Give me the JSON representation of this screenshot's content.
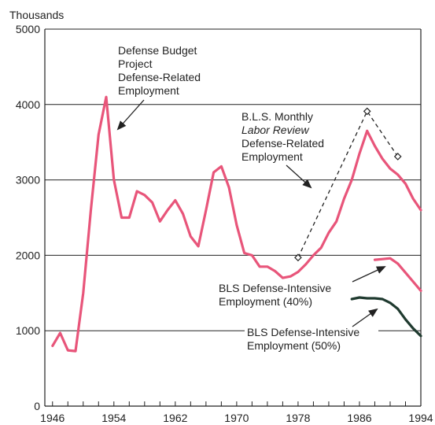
{
  "chart_data": {
    "type": "line",
    "title": "",
    "ylabel": "Thousands",
    "xlabel": "",
    "xlim": [
      1945,
      1994
    ],
    "ylim": [
      0,
      5000
    ],
    "x_ticks": [
      1946,
      1954,
      1962,
      1970,
      1978,
      1986,
      1994
    ],
    "y_ticks": [
      0,
      1000,
      2000,
      3000,
      4000,
      5000
    ],
    "grid": "horizontal",
    "colors": {
      "defense_budget": "#e8557a",
      "bls_mlr": "#222222",
      "bls_40": "#e8557a",
      "bls_50": "#1f3a2f",
      "axes": "#222222"
    },
    "series": [
      {
        "key": "defense_budget",
        "x": [
          1946,
          1947,
          1948,
          1949,
          1950,
          1951,
          1952,
          1953,
          1954,
          1955,
          1956,
          1957,
          1958,
          1959,
          1960,
          1961,
          1962,
          1963,
          1964,
          1965,
          1966,
          1967,
          1968,
          1969,
          1970,
          1971,
          1972,
          1973,
          1974,
          1975,
          1976,
          1977,
          1978,
          1979,
          1980,
          1981,
          1982,
          1983,
          1984,
          1985,
          1986,
          1987,
          1988,
          1989,
          1990,
          1991,
          1992,
          1993,
          1994
        ],
        "values": [
          800,
          970,
          740,
          730,
          1500,
          2600,
          3600,
          4100,
          3000,
          2500,
          2500,
          2850,
          2800,
          2700,
          2450,
          2600,
          2730,
          2550,
          2250,
          2120,
          2600,
          3100,
          3180,
          2900,
          2400,
          2030,
          2000,
          1850,
          1850,
          1790,
          1700,
          1720,
          1780,
          1880,
          2000,
          2100,
          2300,
          2450,
          2750,
          3000,
          3350,
          3650,
          3450,
          3280,
          3150,
          3070,
          2950,
          2750,
          2600
        ]
      },
      {
        "key": "bls_mlr",
        "x": [
          1978,
          1987,
          1991
        ],
        "values": [
          1970,
          3910,
          3310
        ]
      },
      {
        "key": "bls_40",
        "x": [
          1988,
          1989,
          1990,
          1991,
          1992,
          1993,
          1994
        ],
        "values": [
          1940,
          1950,
          1960,
          1890,
          1770,
          1650,
          1530
        ]
      },
      {
        "key": "bls_50",
        "x": [
          1985,
          1986,
          1987,
          1988,
          1989,
          1990,
          1991,
          1992,
          1993,
          1994
        ],
        "values": [
          1420,
          1440,
          1430,
          1430,
          1420,
          1370,
          1290,
          1150,
          1030,
          930
        ]
      }
    ],
    "annotations": [
      {
        "key": "defense_budget",
        "lines": [
          "Defense Budget",
          "Project",
          "Defense-Related",
          "Employment"
        ]
      },
      {
        "key": "bls_mlr",
        "lines": [
          "B.L.S. Monthly",
          "Labor Review",
          "Defense-Related",
          "Employment"
        ]
      },
      {
        "key": "bls_40",
        "lines": [
          "BLS Defense-Intensive",
          "Employment (40%)"
        ]
      },
      {
        "key": "bls_50",
        "lines": [
          "BLS Defense-Intensive",
          "Employment (50%)"
        ]
      }
    ]
  }
}
